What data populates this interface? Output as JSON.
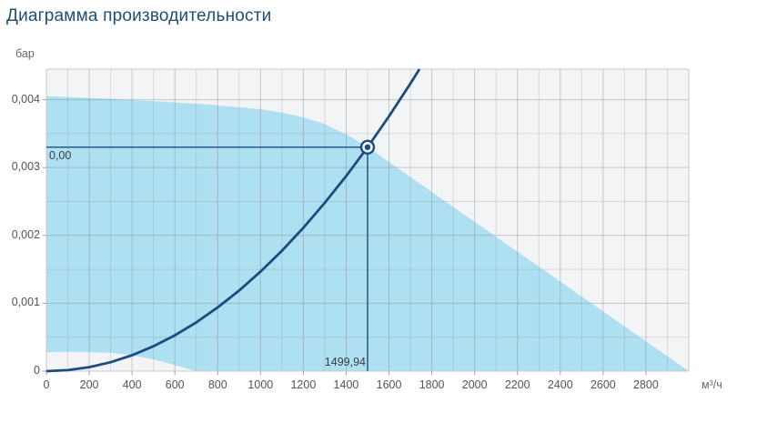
{
  "title": "Диаграмма производительности",
  "colors": {
    "accent_navy": "#1c4c80",
    "title_blue": "#1f4e73",
    "envelope_fill": "rgba(159,220,239,0.82)",
    "plot_background": "#f3f4f6",
    "plot_border": "#c6c8cc",
    "grid": "#7d828b",
    "tick": "#a0a3a8",
    "marker_core": "#1c4c80"
  },
  "chart_data": {
    "type": "area",
    "title": "Диаграмма производительности",
    "x_axis": {
      "unit": "м³/ч",
      "min": 0,
      "max": 3000,
      "label_step": 200,
      "grid_step": 100,
      "tick_labels": [
        "0",
        "200",
        "400",
        "600",
        "800",
        "1000",
        "1200",
        "1400",
        "1600",
        "1800",
        "2000",
        "2200",
        "2400",
        "2600",
        "2800"
      ]
    },
    "y_axis": {
      "unit": "бар",
      "min": 0,
      "max": 0.00445,
      "label_step": 0.001,
      "grid_step": 0.0005,
      "tick_values": [
        0,
        0.001,
        0.002,
        0.003,
        0.004
      ],
      "tick_labels": [
        "0",
        "0,001",
        "0,002",
        "0,003",
        "0,004"
      ]
    },
    "series": [
      {
        "name": "operating-envelope",
        "type": "area-band",
        "upper": [
          [
            0,
            0.00405
          ],
          [
            250,
            0.00402
          ],
          [
            500,
            0.00398
          ],
          [
            750,
            0.00393
          ],
          [
            1000,
            0.00386
          ],
          [
            1100,
            0.00381
          ],
          [
            1200,
            0.00374
          ],
          [
            1300,
            0.00364
          ],
          [
            1400,
            0.00349
          ],
          [
            1500,
            0.0033
          ],
          [
            3000,
            0
          ]
        ],
        "lower": [
          [
            0,
            0.00028
          ],
          [
            150,
            0.000285
          ],
          [
            300,
            0.00027
          ],
          [
            400,
            0.000235
          ],
          [
            500,
            0.00017
          ],
          [
            600,
            9e-05
          ],
          [
            700,
            0
          ]
        ]
      },
      {
        "name": "system-curve",
        "type": "line",
        "points": [
          [
            0,
            0
          ],
          [
            100,
            1.47e-05
          ],
          [
            200,
            5.87e-05
          ],
          [
            300,
            0.000132
          ],
          [
            400,
            0.000235
          ],
          [
            500,
            0.000367
          ],
          [
            600,
            0.000528
          ],
          [
            700,
            0.000719
          ],
          [
            800,
            0.000939
          ],
          [
            900,
            0.001188
          ],
          [
            1000,
            0.001467
          ],
          [
            1100,
            0.001775
          ],
          [
            1200,
            0.002112
          ],
          [
            1300,
            0.002479
          ],
          [
            1400,
            0.002875
          ],
          [
            1500,
            0.0033
          ],
          [
            1600,
            0.003754
          ],
          [
            1700,
            0.004238
          ],
          [
            1742,
            0.00445
          ]
        ]
      }
    ],
    "operating_point": {
      "flow": 1499.94,
      "pressure_bar": 0.0033,
      "flow_label": "1499,94",
      "pressure_label": "0,00"
    },
    "grid": true,
    "legend": false
  }
}
